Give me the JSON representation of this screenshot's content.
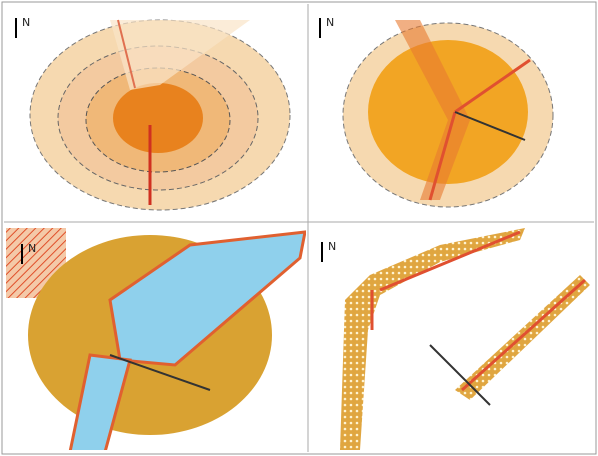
{
  "panels": [
    {
      "north": "N"
    },
    {
      "north": "N"
    },
    {
      "north": "N"
    },
    {
      "north": "N"
    }
  ]
}
